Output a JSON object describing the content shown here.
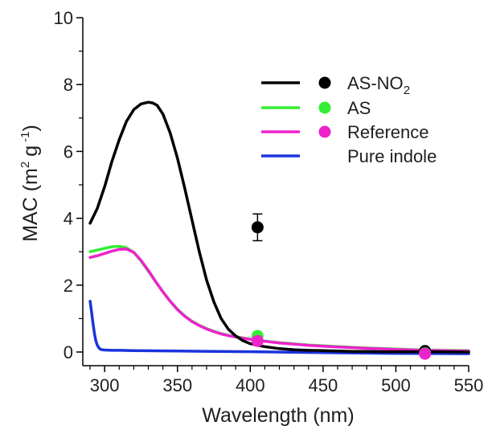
{
  "chart_data": {
    "type": "line",
    "xlabel": "Wavelength (nm)",
    "ylabel": {
      "prefix": "MAC (m",
      "exp1": "2",
      "mid": "g",
      "exp2": "-1",
      "suffix": ")"
    },
    "xlim": [
      285,
      550
    ],
    "ylim": [
      0,
      10
    ],
    "xticks": [
      300,
      350,
      400,
      450,
      500,
      550
    ],
    "yticks": [
      0,
      2,
      4,
      6,
      8,
      10
    ],
    "x_tick_labels": [
      "300",
      "350",
      "400",
      "450",
      "500",
      "550"
    ],
    "y_tick_labels": [
      "0",
      "2",
      "4",
      "6",
      "8",
      "10"
    ],
    "grid": false,
    "legend_position": "top-right",
    "series": [
      {
        "name": "AS-NO2",
        "legend_main": "AS-NO",
        "legend_sub": "2",
        "color": "#000000",
        "line": {
          "x": [
            290,
            295,
            300,
            305,
            310,
            315,
            320,
            325,
            330,
            333,
            336,
            340,
            345,
            350,
            355,
            360,
            365,
            370,
            375,
            380,
            385,
            390,
            395,
            400,
            405,
            410,
            420,
            430,
            440,
            450,
            460,
            470,
            480,
            490,
            500,
            520,
            550
          ],
          "y": [
            3.85,
            4.3,
            4.95,
            5.7,
            6.35,
            6.9,
            7.25,
            7.42,
            7.47,
            7.45,
            7.38,
            7.12,
            6.55,
            5.8,
            4.9,
            3.95,
            3.0,
            2.15,
            1.5,
            1.0,
            0.68,
            0.48,
            0.34,
            0.25,
            0.2,
            0.16,
            0.1,
            0.07,
            0.05,
            0.04,
            0.03,
            0.02,
            0.02,
            0.01,
            0.01,
            0.01,
            0.0
          ]
        },
        "points": [
          {
            "x": 405,
            "y": 3.73,
            "yerr_low": 0.4,
            "yerr_high": 0.4
          },
          {
            "x": 520,
            "y": 0.03,
            "yerr_low": 0.05,
            "yerr_high": 0.05
          }
        ]
      },
      {
        "name": "AS",
        "legend_main": "AS",
        "legend_sub": "",
        "color": "#33ee33",
        "line": {
          "x": [
            290,
            295,
            300,
            305,
            310,
            315,
            320,
            325,
            330,
            335,
            340,
            345,
            350,
            355,
            360,
            365,
            370,
            375,
            380,
            385,
            390,
            395,
            400,
            410,
            420,
            440,
            460,
            480,
            500,
            520,
            550
          ],
          "y": [
            3.0,
            3.05,
            3.1,
            3.15,
            3.16,
            3.12,
            2.98,
            2.72,
            2.42,
            2.1,
            1.8,
            1.52,
            1.28,
            1.08,
            0.92,
            0.8,
            0.7,
            0.62,
            0.55,
            0.5,
            0.46,
            0.42,
            0.39,
            0.33,
            0.28,
            0.21,
            0.16,
            0.12,
            0.09,
            0.06,
            0.04
          ]
        },
        "points": [
          {
            "x": 405,
            "y": 0.48,
            "yerr_low": 0.05,
            "yerr_high": 0.05
          },
          {
            "x": 520,
            "y": -0.04,
            "yerr_low": 0.04,
            "yerr_high": 0.04
          }
        ]
      },
      {
        "name": "Reference",
        "legend_main": "Reference",
        "legend_sub": "",
        "color": "#ee22cc",
        "line": {
          "x": [
            290,
            295,
            300,
            305,
            310,
            315,
            320,
            325,
            330,
            335,
            340,
            345,
            350,
            355,
            360,
            365,
            370,
            375,
            380,
            385,
            390,
            395,
            400,
            410,
            420,
            440,
            460,
            480,
            500,
            520,
            550
          ],
          "y": [
            2.83,
            2.88,
            2.95,
            3.02,
            3.07,
            3.08,
            2.98,
            2.74,
            2.44,
            2.11,
            1.8,
            1.52,
            1.27,
            1.07,
            0.91,
            0.79,
            0.69,
            0.61,
            0.54,
            0.49,
            0.45,
            0.41,
            0.38,
            0.32,
            0.27,
            0.2,
            0.15,
            0.11,
            0.08,
            0.05,
            0.03
          ]
        },
        "points": [
          {
            "x": 405,
            "y": 0.33,
            "yerr_low": 0.12,
            "yerr_high": 0.12
          },
          {
            "x": 520,
            "y": -0.05,
            "yerr_low": 0.05,
            "yerr_high": 0.05
          }
        ]
      },
      {
        "name": "Pure indole",
        "legend_main": "Pure indole",
        "legend_sub": "",
        "color": "#1a33dd",
        "line": {
          "x": [
            290,
            291,
            292,
            293,
            294,
            295,
            296,
            297,
            298,
            300,
            305,
            310,
            320,
            350,
            400,
            450,
            500,
            550
          ],
          "y": [
            1.52,
            1.2,
            0.85,
            0.55,
            0.33,
            0.2,
            0.13,
            0.09,
            0.07,
            0.06,
            0.05,
            0.05,
            0.04,
            0.03,
            0.01,
            -0.02,
            -0.04,
            -0.05
          ]
        },
        "points": []
      }
    ]
  }
}
